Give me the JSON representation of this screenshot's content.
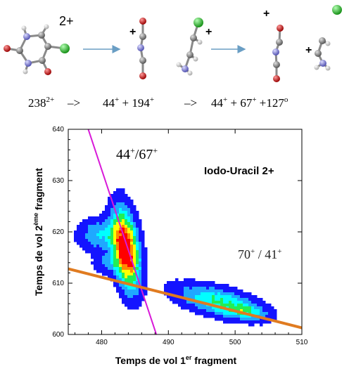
{
  "molecule_charges": {
    "parent": "2+",
    "frag_a": "+",
    "frag_b": "+",
    "frag_c": "+",
    "frag_d": "+"
  },
  "reaction": {
    "step1_lhs": "238",
    "step1_lhs_sup": "2+",
    "arrow1": "–>",
    "step1_a": "44",
    "step1_a_sup": "+",
    "plus1": "+",
    "step1_b": "194",
    "step1_b_sup": "+",
    "arrow2": "–>",
    "step2_a": "44",
    "step2_a_sup": "+",
    "plus2": "+",
    "step2_b": "67",
    "step2_b_sup": "+",
    "plus3": "+",
    "step2_c": "127",
    "step2_c_sup": "o"
  },
  "colors": {
    "atom_carbon": "#7a7a7a",
    "atom_oxygen": "#d01010",
    "atom_nitrogen": "#7d7ddb",
    "atom_hydrogen": "#e8e8e8",
    "atom_iodine": "#22c022",
    "arrow": "#6a9ec4",
    "line_magenta": "#d81ad8",
    "line_orange": "#e07b20"
  },
  "chart_data": {
    "type": "heatmap",
    "title": "Iodo-Uracil 2+",
    "annotation_upper": "44+/67+",
    "annotation_right": "70+ / 41+",
    "xlabel": "Temps de vol 1er fragment",
    "ylabel": "Temps de vol 2ème fragment",
    "xlim": [
      475,
      510
    ],
    "ylim": [
      600,
      640
    ],
    "xticks": [
      "480",
      "490",
      "500",
      "510"
    ],
    "yticks": [
      "600",
      "610",
      "620",
      "630",
      "640"
    ],
    "levels": [
      "#1414ff",
      "#1fa8ff",
      "#00ffff",
      "#22ee55",
      "#ffff00",
      "#ff8800",
      "#ff0000"
    ],
    "islands": [
      {
        "name": "44+/67+",
        "cx": 483.6,
        "cy": 616.6,
        "sx": 1.35,
        "sy": 5.0,
        "rho": -0.35,
        "peak": 1.0
      },
      {
        "name": "tail-left",
        "cx": 479.5,
        "cy": 619.5,
        "sx": 2.0,
        "sy": 2.0,
        "rho": 0,
        "peak": 0.3
      },
      {
        "name": "tail-left-low",
        "cx": 481.0,
        "cy": 614.0,
        "sx": 1.6,
        "sy": 1.5,
        "rho": 0,
        "peak": 0.18
      },
      {
        "name": "70+/41+",
        "cx": 497.5,
        "cy": 606.4,
        "sx": 4.2,
        "sy": 2.2,
        "rho": -0.55,
        "peak": 0.42
      },
      {
        "name": "70+/41+ core",
        "cx": 501.5,
        "cy": 604.5,
        "sx": 2.0,
        "sy": 1.0,
        "rho": -0.3,
        "peak": 0.25
      }
    ],
    "lines": [
      {
        "name": "magenta",
        "x": [
          478.0,
          488.2
        ],
        "y": [
          640,
          600
        ]
      },
      {
        "name": "orange",
        "x": [
          475,
          510
        ],
        "y": [
          612.8,
          601.3
        ]
      }
    ],
    "grid": false
  }
}
